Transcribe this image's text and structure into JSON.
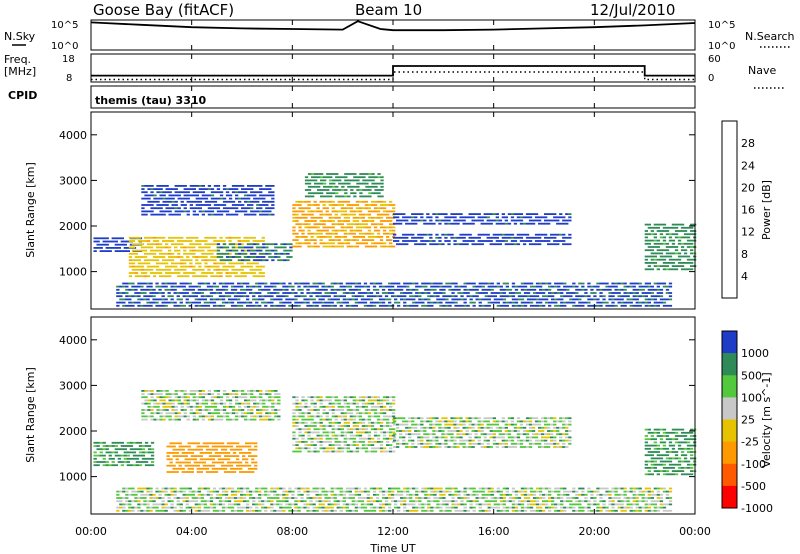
{
  "header": {
    "station": "Goose Bay (fitACF)",
    "beam": "Beam 10",
    "date": "12/Jul/2010"
  },
  "noise_panel": {
    "left_label": "N.Sky",
    "right_label": "N.Search",
    "left_ticks": [
      "10^5",
      "10^0"
    ],
    "right_ticks": [
      "10^5",
      "10^0"
    ]
  },
  "freq_panel": {
    "left_label_1": "Freq.",
    "left_label_2": "[MHz]",
    "right_label": "Nave",
    "left_ticks": [
      "18",
      "8"
    ],
    "right_ticks": [
      "60",
      "0"
    ]
  },
  "cpid_panel": {
    "label": "CPID",
    "program": "themis (tau) 3310"
  },
  "axes": {
    "x_label": "Time UT",
    "x_ticks": [
      "00:00",
      "04:00",
      "08:00",
      "12:00",
      "16:00",
      "20:00",
      "00:00"
    ],
    "y_label": "Slant Range [km]",
    "y_ticks": [
      "1000",
      "2000",
      "3000",
      "4000"
    ]
  },
  "power_colorbar": {
    "label": "Power [dB]",
    "ticks": [
      "4",
      "8",
      "12",
      "16",
      "20",
      "24",
      "28"
    ],
    "colors": [
      "#0000ff",
      "#1e3cc8",
      "#2e8b57",
      "#52c83c",
      "#e6c300",
      "#ff9900",
      "#ff5a00",
      "#ff0000"
    ]
  },
  "velocity_colorbar": {
    "label": "Velocity [m s^-1]",
    "ticks": [
      "1000",
      "500",
      "100",
      "25",
      "-25",
      "-100",
      "-500",
      "-1000"
    ],
    "colors": [
      "#1e3cc8",
      "#2e8b57",
      "#52c83c",
      "#c8c8c8",
      "#e6c300",
      "#ff9900",
      "#ff5a00",
      "#ff0000"
    ]
  },
  "chart_data": [
    {
      "type": "line",
      "title": "N.Sky / N.Search",
      "x_units": "hours UT",
      "xlim": [
        0,
        24
      ],
      "series": [
        {
          "name": "N.Sky",
          "x": [
            0,
            0.5,
            2,
            4,
            6,
            8,
            10,
            10.6,
            11.5,
            12,
            14,
            16,
            18,
            20,
            22,
            24
          ],
          "y_log10": [
            4.6,
            4.5,
            4.2,
            3.8,
            3.6,
            3.5,
            3.4,
            4.8,
            3.5,
            3.3,
            3.3,
            3.4,
            3.6,
            3.8,
            4.1,
            4.5
          ]
        }
      ]
    },
    {
      "type": "line",
      "title": "Freq. / Nave",
      "x_units": "hours UT",
      "xlim": [
        0,
        24
      ],
      "ylim_freq_mhz": [
        8,
        18
      ],
      "ylim_nave": [
        0,
        60
      ],
      "series": [
        {
          "name": "Freq.",
          "x": [
            0,
            12,
            12,
            22,
            22,
            24
          ],
          "y": [
            10.3,
            10.3,
            13.7,
            13.7,
            10.3,
            10.3
          ]
        },
        {
          "name": "Nave",
          "x": [
            0,
            12,
            12,
            22,
            22,
            24
          ],
          "y": [
            14,
            14,
            30,
            30,
            14,
            14
          ]
        }
      ]
    },
    {
      "type": "heatmap",
      "title": "Power [dB]",
      "x_units": "hours UT",
      "y_units": "km",
      "xlim": [
        0,
        24
      ],
      "ylim": [
        180,
        4500
      ],
      "value_range": [
        0,
        30
      ],
      "regions": [
        {
          "t": [
            0.1,
            2.0
          ],
          "r": [
            1400,
            1700
          ],
          "v": 6
        },
        {
          "t": [
            1.5,
            6.8
          ],
          "r": [
            850,
            1750
          ],
          "v": 18
        },
        {
          "t": [
            2.0,
            7.2
          ],
          "r": [
            2200,
            2900
          ],
          "v": 6
        },
        {
          "t": [
            5.0,
            8.0
          ],
          "r": [
            1200,
            1600
          ],
          "v": 8
        },
        {
          "t": [
            8.0,
            12.0
          ],
          "r": [
            1500,
            2500
          ],
          "v": 20
        },
        {
          "t": [
            8.5,
            11.5
          ],
          "r": [
            2600,
            3100
          ],
          "v": 10
        },
        {
          "t": [
            12.0,
            19.0
          ],
          "r": [
            2000,
            2250
          ],
          "v": 6
        },
        {
          "t": [
            12.0,
            19.0
          ],
          "r": [
            1550,
            1800
          ],
          "v": 6
        },
        {
          "t": [
            22.0,
            24.0
          ],
          "r": [
            1000,
            2000
          ],
          "v": 10
        },
        {
          "t": [
            1.0,
            23.0
          ],
          "r": [
            200,
            700
          ],
          "v": 7
        }
      ]
    },
    {
      "type": "heatmap",
      "title": "Velocity [m s^-1]",
      "x_units": "hours UT",
      "y_units": "km",
      "xlim": [
        0,
        24
      ],
      "ylim": [
        180,
        4500
      ],
      "value_range": [
        -1000,
        1000
      ],
      "regions": [
        {
          "t": [
            0.1,
            2.5
          ],
          "r": [
            1200,
            1700
          ],
          "v": 100
        },
        {
          "t": [
            3.0,
            6.5
          ],
          "r": [
            1050,
            1700
          ],
          "v": -300
        },
        {
          "t": [
            2.0,
            7.5
          ],
          "r": [
            2200,
            2900
          ],
          "v": 0
        },
        {
          "t": [
            8.0,
            12.0
          ],
          "r": [
            1500,
            2700
          ],
          "v": 0
        },
        {
          "t": [
            12.0,
            19.0
          ],
          "r": [
            1600,
            2250
          ],
          "v": 0
        },
        {
          "t": [
            22.0,
            24.0
          ],
          "r": [
            1000,
            2000
          ],
          "v": 100
        },
        {
          "t": [
            1.0,
            23.0
          ],
          "r": [
            200,
            700
          ],
          "v": 0
        }
      ]
    }
  ]
}
